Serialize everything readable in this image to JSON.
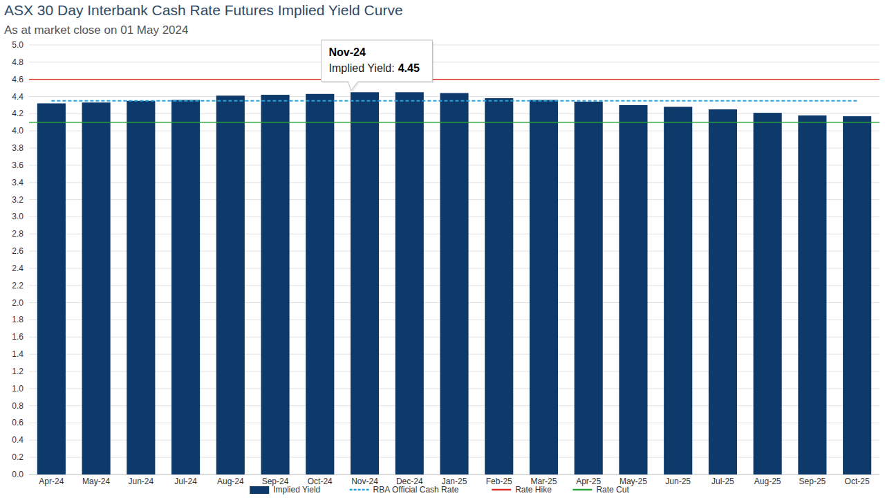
{
  "chart_data": {
    "type": "bar",
    "title": "ASX 30 Day Interbank Cash Rate Futures Implied Yield Curve",
    "subtitle": "As at market close on 01 May 2024",
    "categories": [
      "Apr-24",
      "May-24",
      "Jun-24",
      "Jul-24",
      "Aug-24",
      "Sep-24",
      "Oct-24",
      "Nov-24",
      "Dec-24",
      "Jan-25",
      "Feb-25",
      "Mar-25",
      "Apr-25",
      "May-25",
      "Jun-25",
      "Jul-25",
      "Aug-25",
      "Sep-25",
      "Oct-25"
    ],
    "series": [
      {
        "name": "Implied Yield",
        "color": "#0e3a6b",
        "values": [
          4.32,
          4.33,
          4.35,
          4.36,
          4.41,
          4.42,
          4.43,
          4.45,
          4.45,
          4.44,
          4.38,
          4.36,
          4.34,
          4.3,
          4.28,
          4.25,
          4.21,
          4.18,
          4.17
        ]
      }
    ],
    "reference_lines": [
      {
        "name": "RBA Official Cash Rate",
        "value": 4.35,
        "color": "#2a9fd8",
        "line_style": "dashed"
      },
      {
        "name": "Rate Hike",
        "value": 4.6,
        "color": "#e0302a",
        "line_style": "solid"
      },
      {
        "name": "Rate Cut",
        "value": 4.1,
        "color": "#2aa33a",
        "line_style": "solid"
      }
    ],
    "annotations": [
      {
        "category": "Nov-24",
        "label": "Implied Yield:",
        "value": 4.45
      }
    ],
    "ylim": [
      0,
      5
    ],
    "yticks": [
      {
        "value": 0,
        "label": "0.0"
      },
      0.2,
      0.4,
      0.6,
      0.8,
      {
        "value": 1,
        "label": "1.0"
      },
      1.2,
      1.4,
      1.6,
      1.8,
      {
        "value": 2,
        "label": "2.0"
      },
      2.2,
      2.4,
      2.6,
      2.8,
      {
        "value": 3,
        "label": "3.0"
      },
      3.2,
      3.4,
      3.6,
      3.8,
      {
        "value": 4,
        "label": "4.0"
      },
      4.2,
      4.4,
      4.6,
      4.8,
      {
        "value": 5,
        "label": "5.0"
      }
    ],
    "grid": true,
    "legend": "bottom"
  }
}
